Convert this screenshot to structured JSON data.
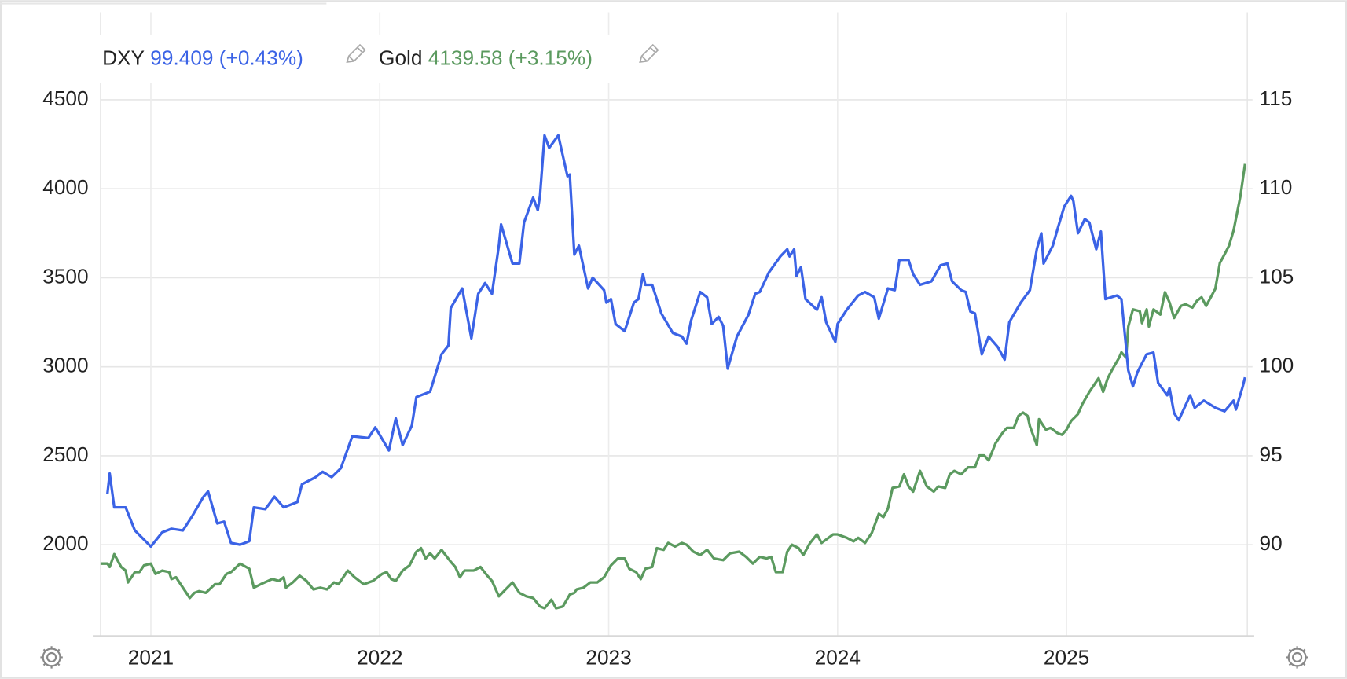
{
  "chart_data": {
    "type": "line",
    "xlim": [
      2020.78,
      2025.79
    ],
    "xticks": [
      2021,
      2022,
      2023,
      2024,
      2025
    ],
    "ylim": [
      1488,
      4992
    ],
    "yticks": [
      2000,
      2500,
      3000,
      3500,
      4000,
      4500
    ],
    "y2lim": [
      84.88,
      119.92
    ],
    "y2ticks": [
      90,
      95,
      100,
      105,
      110,
      115
    ],
    "grid": true,
    "series": [
      {
        "name": "DXY",
        "quote": "99.409 (+0.43%)",
        "color": "#3b63e6",
        "axis": "y2",
        "x": [
          2020.81,
          2020.82,
          2020.84,
          2020.89,
          2020.93,
          2021.0,
          2021.05,
          2021.09,
          2021.14,
          2021.18,
          2021.23,
          2021.25,
          2021.29,
          2021.32,
          2021.35,
          2021.39,
          2021.43,
          2021.45,
          2021.5,
          2021.54,
          2021.58,
          2021.64,
          2021.66,
          2021.72,
          2021.75,
          2021.79,
          2021.83,
          2021.88,
          2021.95,
          2021.98,
          2022.04,
          2022.07,
          2022.1,
          2022.14,
          2022.16,
          2022.22,
          2022.27,
          2022.3,
          2022.31,
          2022.36,
          2022.4,
          2022.43,
          2022.46,
          2022.49,
          2022.52,
          2022.53,
          2022.58,
          2022.61,
          2022.63,
          2022.67,
          2022.69,
          2022.7,
          2022.72,
          2022.74,
          2022.78,
          2022.82,
          2022.83,
          2022.85,
          2022.87,
          2022.91,
          2022.93,
          2022.98,
          2022.99,
          2023.01,
          2023.03,
          2023.07,
          2023.11,
          2023.13,
          2023.15,
          2023.16,
          2023.19,
          2023.23,
          2023.28,
          2023.32,
          2023.34,
          2023.36,
          2023.4,
          2023.43,
          2023.45,
          2023.48,
          2023.5,
          2023.52,
          2023.56,
          2023.61,
          2023.64,
          2023.66,
          2023.7,
          2023.75,
          2023.78,
          2023.79,
          2023.81,
          2023.82,
          2023.84,
          2023.86,
          2023.91,
          2023.93,
          2023.95,
          2023.99,
          2024.0,
          2024.04,
          2024.09,
          2024.12,
          2024.16,
          2024.18,
          2024.22,
          2024.25,
          2024.27,
          2024.31,
          2024.33,
          2024.36,
          2024.41,
          2024.45,
          2024.48,
          2024.5,
          2024.54,
          2024.56,
          2024.58,
          2024.6,
          2024.63,
          2024.66,
          2024.7,
          2024.73,
          2024.75,
          2024.8,
          2024.84,
          2024.87,
          2024.89,
          2024.9,
          2024.94,
          2024.96,
          2024.99,
          2025.02,
          2025.03,
          2025.05,
          2025.08,
          2025.1,
          2025.13,
          2025.15,
          2025.17,
          2025.22,
          2025.24,
          2025.27,
          2025.29,
          2025.31,
          2025.35,
          2025.38,
          2025.4,
          2025.44,
          2025.45,
          2025.47,
          2025.49,
          2025.54,
          2025.56,
          2025.6,
          2025.65,
          2025.69,
          2025.73,
          2025.74,
          2025.77,
          2025.78
        ],
        "values": [
          92.85,
          94.0,
          92.1,
          92.1,
          90.8,
          89.9,
          90.7,
          90.9,
          90.8,
          91.6,
          92.7,
          93.0,
          91.2,
          91.3,
          90.1,
          90.0,
          90.2,
          92.1,
          92.0,
          92.7,
          92.1,
          92.4,
          93.4,
          93.8,
          94.1,
          93.8,
          94.3,
          96.1,
          96.0,
          96.6,
          95.3,
          97.1,
          95.6,
          96.7,
          98.3,
          98.6,
          100.7,
          101.2,
          103.3,
          104.4,
          101.6,
          104.1,
          104.7,
          104.1,
          106.8,
          108.0,
          105.8,
          105.8,
          108.1,
          109.5,
          108.8,
          109.6,
          113.0,
          112.3,
          113.0,
          110.7,
          110.8,
          106.3,
          106.8,
          104.4,
          105.0,
          104.3,
          103.6,
          103.8,
          102.4,
          102.0,
          103.6,
          103.8,
          105.2,
          104.6,
          104.6,
          103.0,
          101.9,
          101.7,
          101.3,
          102.6,
          104.2,
          103.9,
          102.4,
          102.8,
          102.3,
          99.9,
          101.7,
          102.9,
          104.1,
          104.2,
          105.3,
          106.2,
          106.6,
          106.2,
          106.6,
          105.1,
          105.6,
          103.8,
          103.2,
          103.9,
          102.5,
          101.4,
          102.4,
          103.2,
          104.0,
          104.2,
          103.9,
          102.7,
          104.4,
          104.3,
          106.0,
          106.0,
          105.2,
          104.6,
          104.8,
          105.7,
          105.8,
          104.8,
          104.3,
          104.2,
          103.1,
          103.0,
          100.7,
          101.7,
          101.1,
          100.4,
          102.5,
          103.6,
          104.3,
          106.6,
          107.5,
          105.8,
          106.8,
          107.7,
          109.0,
          109.6,
          109.3,
          107.5,
          108.3,
          108.1,
          106.6,
          107.6,
          103.8,
          104.0,
          103.8,
          99.8,
          98.9,
          99.7,
          100.7,
          100.8,
          99.1,
          98.4,
          98.8,
          97.4,
          97.0,
          98.4,
          97.7,
          98.1,
          97.7,
          97.5,
          98.1,
          97.6,
          98.9,
          99.409
        ]
      },
      {
        "name": "Gold",
        "quote": "4139.58 (+3.15%)",
        "color": "#5b9a5f",
        "axis": "y",
        "x": [
          2020.78,
          2020.81,
          2020.82,
          2020.84,
          2020.87,
          2020.89,
          2020.9,
          2020.93,
          2020.95,
          2020.97,
          2021.0,
          2021.02,
          2021.05,
          2021.08,
          2021.09,
          2021.11,
          2021.14,
          2021.17,
          2021.19,
          2021.21,
          2021.24,
          2021.28,
          2021.3,
          2021.33,
          2021.35,
          2021.39,
          2021.43,
          2021.45,
          2021.48,
          2021.53,
          2021.56,
          2021.58,
          2021.59,
          2021.62,
          2021.65,
          2021.68,
          2021.71,
          2021.74,
          2021.77,
          2021.8,
          2021.82,
          2021.86,
          2021.89,
          2021.93,
          2021.97,
          2022.01,
          2022.03,
          2022.05,
          2022.07,
          2022.1,
          2022.13,
          2022.16,
          2022.18,
          2022.2,
          2022.22,
          2022.24,
          2022.27,
          2022.31,
          2022.33,
          2022.35,
          2022.37,
          2022.41,
          2022.44,
          2022.47,
          2022.49,
          2022.52,
          2022.55,
          2022.58,
          2022.61,
          2022.64,
          2022.67,
          2022.7,
          2022.72,
          2022.75,
          2022.77,
          2022.8,
          2022.83,
          2022.85,
          2022.86,
          2022.89,
          2022.92,
          2022.95,
          2022.98,
          2023.01,
          2023.04,
          2023.07,
          2023.09,
          2023.12,
          2023.14,
          2023.16,
          2023.19,
          2023.21,
          2023.24,
          2023.26,
          2023.29,
          2023.32,
          2023.34,
          2023.37,
          2023.4,
          2023.43,
          2023.46,
          2023.5,
          2023.53,
          2023.57,
          2023.6,
          2023.63,
          2023.66,
          2023.69,
          2023.71,
          2023.73,
          2023.76,
          2023.78,
          2023.8,
          2023.83,
          2023.85,
          2023.88,
          2023.91,
          2023.93,
          2023.95,
          2023.98,
          2024.0,
          2024.04,
          2024.07,
          2024.09,
          2024.12,
          2024.15,
          2024.18,
          2024.2,
          2024.22,
          2024.24,
          2024.27,
          2024.29,
          2024.31,
          2024.33,
          2024.36,
          2024.39,
          2024.42,
          2024.44,
          2024.47,
          2024.49,
          2024.51,
          2024.54,
          2024.57,
          2024.6,
          2024.62,
          2024.64,
          2024.66,
          2024.69,
          2024.72,
          2024.74,
          2024.77,
          2024.79,
          2024.81,
          2024.83,
          2024.84,
          2024.87,
          2024.88,
          2024.91,
          2024.93,
          2024.96,
          2024.98,
          2025.0,
          2025.02,
          2025.05,
          2025.07,
          2025.1,
          2025.12,
          2025.14,
          2025.16,
          2025.18,
          2025.2,
          2025.23,
          2025.24,
          2025.26,
          2025.27,
          2025.29,
          2025.32,
          2025.33,
          2025.35,
          2025.36,
          2025.38,
          2025.41,
          2025.43,
          2025.45,
          2025.47,
          2025.5,
          2025.52,
          2025.55,
          2025.57,
          2025.59,
          2025.61,
          2025.63,
          2025.65,
          2025.67,
          2025.69,
          2025.71,
          2025.73,
          2025.76,
          2025.78
        ],
        "values": [
          1894,
          1894,
          1875,
          1947,
          1875,
          1855,
          1788,
          1846,
          1846,
          1884,
          1894,
          1836,
          1855,
          1846,
          1807,
          1817,
          1759,
          1701,
          1730,
          1739,
          1730,
          1778,
          1778,
          1836,
          1846,
          1894,
          1865,
          1759,
          1778,
          1807,
          1797,
          1817,
          1759,
          1788,
          1826,
          1797,
          1749,
          1759,
          1749,
          1788,
          1778,
          1855,
          1817,
          1778,
          1797,
          1836,
          1846,
          1807,
          1797,
          1855,
          1884,
          1961,
          1981,
          1923,
          1952,
          1923,
          1971,
          1904,
          1875,
          1817,
          1855,
          1855,
          1875,
          1826,
          1797,
          1710,
          1749,
          1788,
          1730,
          1710,
          1701,
          1653,
          1643,
          1691,
          1643,
          1653,
          1720,
          1730,
          1749,
          1759,
          1788,
          1788,
          1817,
          1884,
          1923,
          1923,
          1865,
          1846,
          1807,
          1865,
          1875,
          1981,
          1971,
          2010,
          1990,
          2010,
          2000,
          1961,
          1942,
          1971,
          1923,
          1913,
          1952,
          1961,
          1932,
          1894,
          1932,
          1923,
          1932,
          1846,
          1846,
          1961,
          2000,
          1981,
          1942,
          2010,
          2058,
          2010,
          2029,
          2058,
          2058,
          2039,
          2019,
          2039,
          2010,
          2068,
          2174,
          2155,
          2203,
          2319,
          2328,
          2396,
          2328,
          2299,
          2415,
          2328,
          2299,
          2328,
          2319,
          2396,
          2415,
          2396,
          2435,
          2435,
          2502,
          2502,
          2474,
          2570,
          2628,
          2657,
          2657,
          2724,
          2743,
          2724,
          2666,
          2560,
          2705,
          2647,
          2657,
          2628,
          2618,
          2647,
          2695,
          2734,
          2792,
          2859,
          2898,
          2936,
          2859,
          2936,
          2985,
          3052,
          3081,
          3052,
          3226,
          3322,
          3312,
          3245,
          3322,
          3226,
          3322,
          3293,
          3419,
          3361,
          3274,
          3342,
          3351,
          3332,
          3371,
          3390,
          3342,
          3390,
          3438,
          3583,
          3631,
          3680,
          3766,
          3960,
          4139.58
        ]
      }
    ]
  }
}
